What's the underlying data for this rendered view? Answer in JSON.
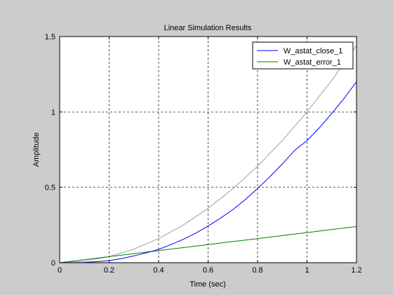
{
  "chart_data": {
    "type": "line",
    "title": "Linear Simulation Results",
    "xlabel": "Time (sec)",
    "ylabel": "Amplitude",
    "xlim": [
      0,
      1.2
    ],
    "ylim": [
      0,
      1.5
    ],
    "xticks": [
      0,
      0.2,
      0.4,
      0.6,
      0.8,
      1,
      1.2
    ],
    "yticks": [
      0,
      0.5,
      1,
      1.5
    ],
    "xtick_labels": [
      "0",
      "0.2",
      "0.4",
      "0.6",
      "0.8",
      "1",
      "1.2"
    ],
    "ytick_labels": [
      "0",
      "0.5",
      "1",
      "1.5"
    ],
    "grid": true,
    "legend_position": "top-right",
    "series": [
      {
        "name": "W_astat_close_1",
        "color": "#0000ff",
        "in_legend": true,
        "x": [
          0,
          0.05,
          0.1,
          0.15,
          0.2,
          0.25,
          0.3,
          0.35,
          0.4,
          0.45,
          0.5,
          0.55,
          0.6,
          0.65,
          0.7,
          0.75,
          0.8,
          0.85,
          0.9,
          0.95,
          1.0,
          1.05,
          1.1,
          1.15,
          1.2
        ],
        "y": [
          0,
          0.0,
          0.002,
          0.007,
          0.014,
          0.027,
          0.045,
          0.065,
          0.088,
          0.12,
          0.155,
          0.196,
          0.243,
          0.295,
          0.352,
          0.418,
          0.492,
          0.57,
          0.655,
          0.745,
          0.81,
          0.895,
          0.99,
          1.09,
          1.2
        ]
      },
      {
        "name": "W_astat_error_1",
        "color": "#008000",
        "in_legend": true,
        "x": [
          0,
          0.1,
          0.2,
          0.3,
          0.4,
          0.5,
          0.6,
          0.7,
          0.8,
          0.9,
          1.0,
          1.1,
          1.2
        ],
        "y": [
          0,
          0.02,
          0.04,
          0.06,
          0.08,
          0.1,
          0.12,
          0.14,
          0.16,
          0.18,
          0.2,
          0.22,
          0.24
        ]
      },
      {
        "name": "",
        "color": "#a0a0a0",
        "in_legend": false,
        "x": [
          0,
          0.1,
          0.2,
          0.3,
          0.4,
          0.5,
          0.6,
          0.7,
          0.8,
          0.9,
          1.0,
          1.1,
          1.2
        ],
        "y": [
          0,
          0.01,
          0.04,
          0.09,
          0.16,
          0.25,
          0.36,
          0.49,
          0.64,
          0.81,
          1.0,
          1.21,
          1.44
        ]
      }
    ]
  }
}
